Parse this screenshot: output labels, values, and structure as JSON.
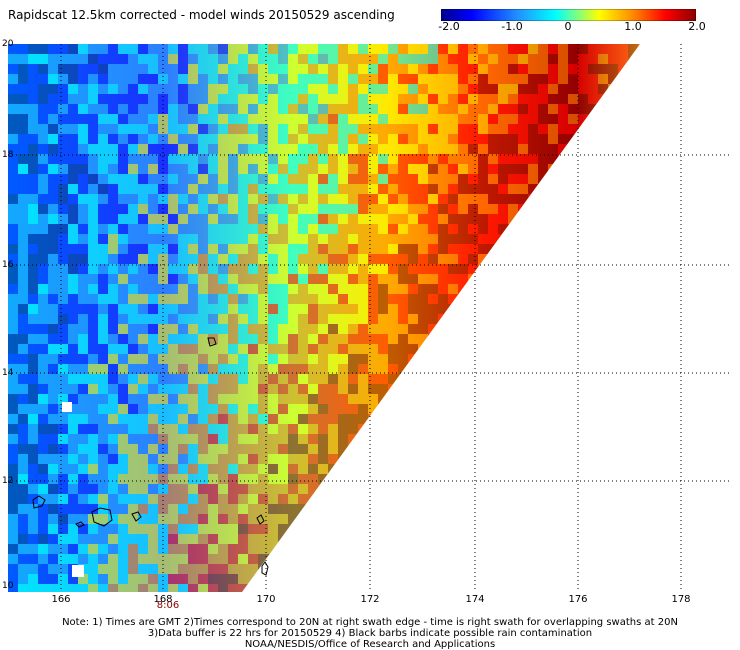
{
  "title": "Rapidscat 12.5km corrected - model winds 20150529 ascending",
  "colorbar": {
    "ticks": [
      "-2.0",
      "-1.0",
      "0",
      "1.0",
      "2.0"
    ],
    "colors": [
      "#00008b",
      "#0000ff",
      "#2090ff",
      "#00ffff",
      "#ffff00",
      "#ff8c00",
      "#ff0000",
      "#8b0000"
    ]
  },
  "map": {
    "lat_labels": [
      "20",
      "18",
      "16",
      "14",
      "12",
      "10"
    ],
    "lon_labels": [
      "166",
      "168",
      "170",
      "172",
      "174",
      "176",
      "178"
    ],
    "time_label": "8:06",
    "grid": "dotted"
  },
  "notes": [
    "Note: 1) Times are GMT 2)Times correspond to 20N at right swath edge - time is right swath for overlapping swaths at 20N",
    "3)Data buffer is 22 hrs for 20150529 4) Black barbs indicate possible rain contamination",
    "NOAA/NESDIS/Office of Research and Applications"
  ]
}
